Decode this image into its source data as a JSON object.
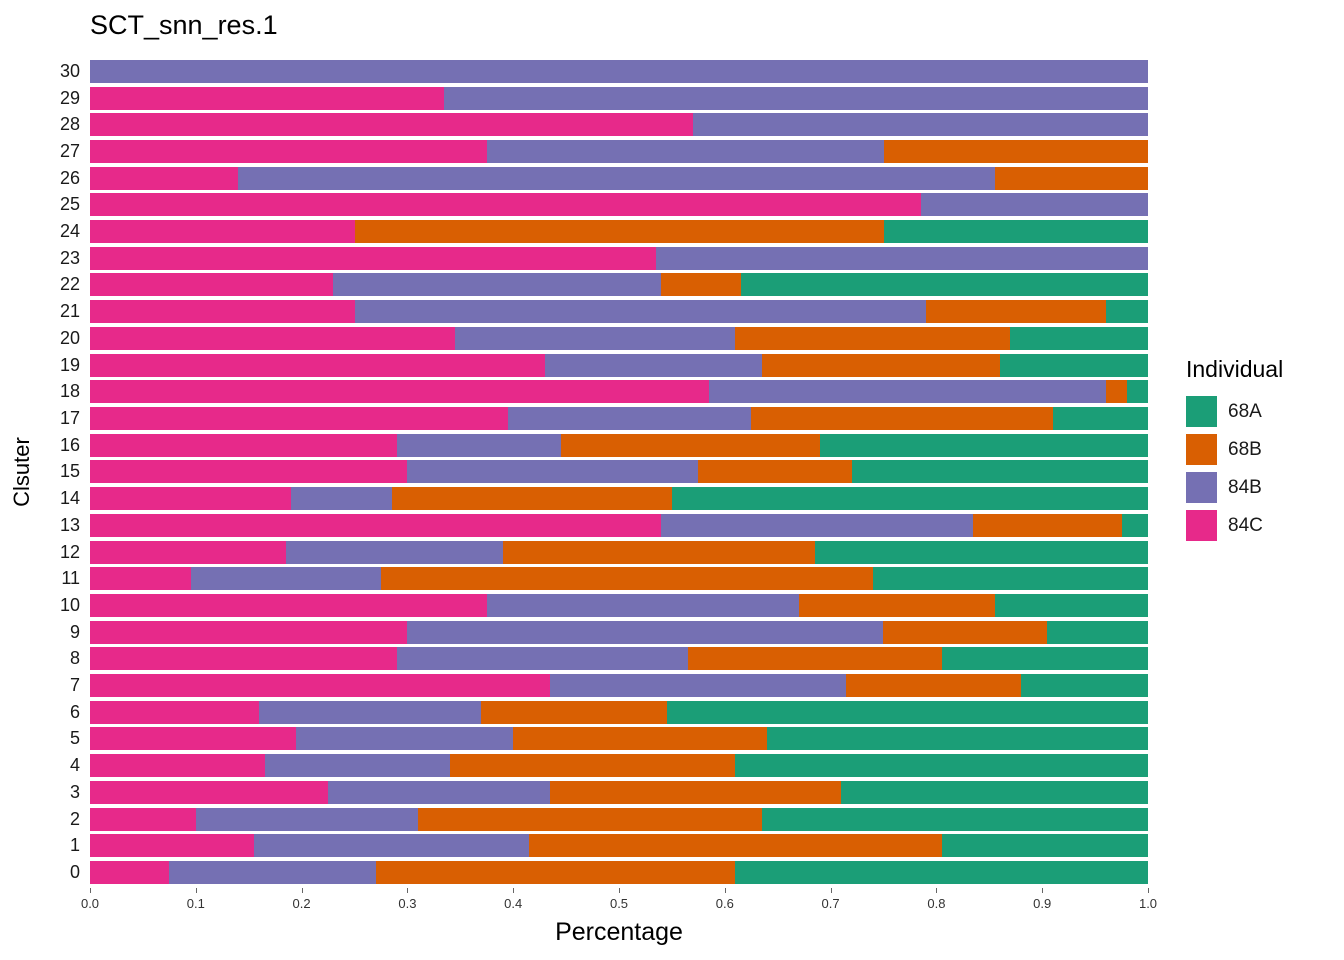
{
  "title": "SCT_snn_res.1",
  "axes": {
    "x_label": "Percentage",
    "y_label": "Clsuter",
    "x_ticks": [
      "0.0",
      "0.1",
      "0.2",
      "0.3",
      "0.4",
      "0.5",
      "0.6",
      "0.7",
      "0.8",
      "0.9",
      "1.0"
    ]
  },
  "legend": {
    "title": "Individual",
    "entries": [
      {
        "label": "68A",
        "color": "#1B9E77"
      },
      {
        "label": "68B",
        "color": "#D95F02"
      },
      {
        "label": "84B",
        "color": "#7570B3"
      },
      {
        "label": "84C",
        "color": "#E7298A"
      }
    ]
  },
  "chart_data": {
    "type": "bar",
    "orientation": "horizontal",
    "stacked": true,
    "title": "SCT_snn_res.1",
    "xlabel": "Percentage",
    "ylabel": "Clsuter",
    "xlim": [
      0,
      1
    ],
    "grid": false,
    "legend_position": "right",
    "stack_order_left_to_right": [
      "84C",
      "84B",
      "68B",
      "68A"
    ],
    "categories": [
      30,
      29,
      28,
      27,
      26,
      25,
      24,
      23,
      22,
      21,
      20,
      19,
      18,
      17,
      16,
      15,
      14,
      13,
      12,
      11,
      10,
      9,
      8,
      7,
      6,
      5,
      4,
      3,
      2,
      1,
      0
    ],
    "series": [
      {
        "name": "84C",
        "color": "#E7298A",
        "values": [
          0,
          0.335,
          0.57,
          0.375,
          0.14,
          0.785,
          0.25,
          0.535,
          0.23,
          0.25,
          0.345,
          0.43,
          0.585,
          0.395,
          0.29,
          0.3,
          0.19,
          0.54,
          0.185,
          0.095,
          0.375,
          0.3,
          0.29,
          0.435,
          0.16,
          0.195,
          0.165,
          0.225,
          0.1,
          0.155,
          0.075
        ]
      },
      {
        "name": "84B",
        "color": "#7570B3",
        "values": [
          1.0,
          0.665,
          0.43,
          0.375,
          0.715,
          0.215,
          0,
          0.465,
          0.31,
          0.54,
          0.265,
          0.205,
          0.375,
          0.23,
          0.155,
          0.275,
          0.095,
          0.295,
          0.205,
          0.18,
          0.295,
          0.45,
          0.275,
          0.28,
          0.21,
          0.205,
          0.175,
          0.21,
          0.21,
          0.26,
          0.195
        ]
      },
      {
        "name": "68B",
        "color": "#D95F02",
        "values": [
          0,
          0,
          0,
          0.25,
          0.145,
          0,
          0.5,
          0,
          0.075,
          0.17,
          0.26,
          0.225,
          0.02,
          0.285,
          0.245,
          0.145,
          0.265,
          0.14,
          0.295,
          0.465,
          0.185,
          0.155,
          0.24,
          0.165,
          0.175,
          0.24,
          0.27,
          0.275,
          0.325,
          0.39,
          0.34
        ]
      },
      {
        "name": "68A",
        "color": "#1B9E77",
        "values": [
          0,
          0,
          0,
          0,
          0,
          0,
          0.25,
          0,
          0.385,
          0.04,
          0.13,
          0.14,
          0.02,
          0.09,
          0.31,
          0.28,
          0.45,
          0.025,
          0.315,
          0.26,
          0.145,
          0.095,
          0.195,
          0.12,
          0.455,
          0.36,
          0.39,
          0.29,
          0.365,
          0.195,
          0.39
        ]
      }
    ]
  }
}
